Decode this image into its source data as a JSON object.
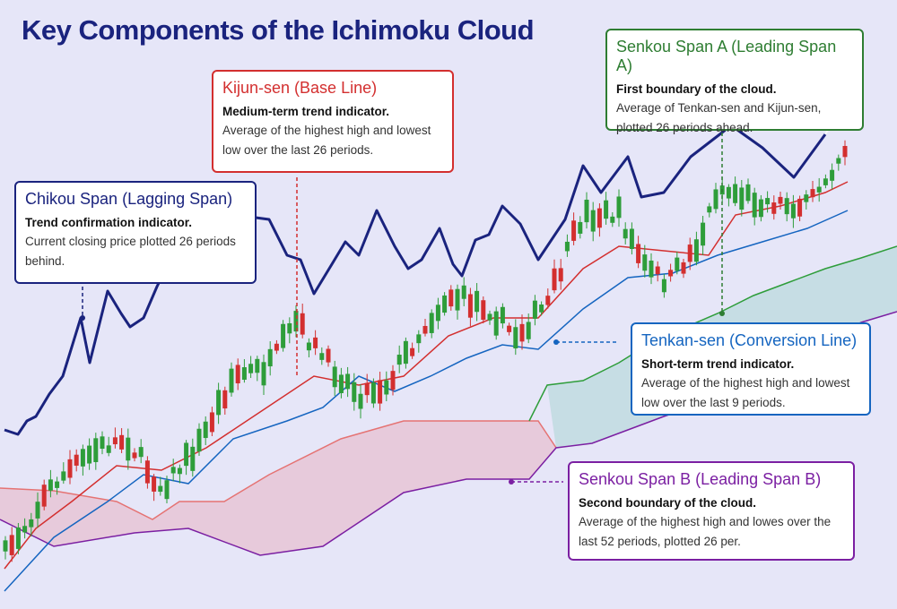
{
  "title": "Key Components of the Ichimoku Cloud",
  "callouts": [
    {
      "heading": "Kijun-sen (Base Line)",
      "subtitle": "Medium-term trend indicator.",
      "body": "Average of the highest high and lowest low over the last 26 periods."
    },
    {
      "heading": "Chikou Span (Lagging Span)",
      "subtitle": "Trend confirmation indicator.",
      "body": "Current closing price plotted 26 periods behind."
    },
    {
      "heading": "Senkou Span A (Leading Span A)",
      "subtitle": "First boundary of the cloud.",
      "body": "Average of Tenkan-sen and Kijun-sen, plotted 26 periods ahead."
    },
    {
      "heading": "Tenkan-sen (Conversion Line)",
      "subtitle": "Short-term trend indicator.",
      "body": "Average of the highest high and lowest low over the last 9 periods."
    },
    {
      "heading": "Senkou Span B (Leading Span B)",
      "subtitle": "Second boundary of the cloud.",
      "body": "Average of the highest high and lowes over the last 52 periods, plotted 26 per."
    }
  ]
}
